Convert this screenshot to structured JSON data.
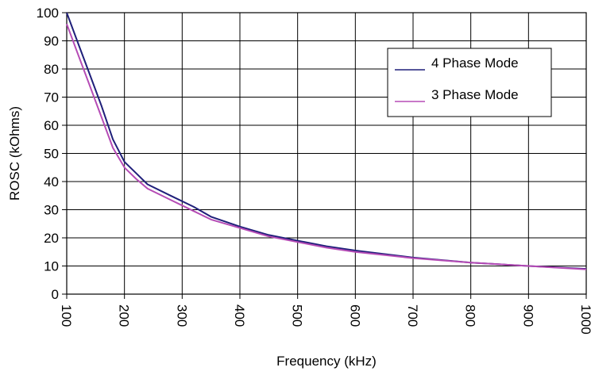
{
  "chart_data": {
    "type": "line",
    "title": "",
    "xlabel": "Frequency (kHz)",
    "ylabel": "ROSC (kOhms)",
    "xlim": [
      100,
      1000
    ],
    "ylim": [
      0,
      100
    ],
    "x_ticks": [
      100,
      200,
      300,
      400,
      500,
      600,
      700,
      800,
      900,
      1000
    ],
    "y_ticks": [
      0,
      10,
      20,
      30,
      40,
      50,
      60,
      70,
      80,
      90,
      100
    ],
    "grid": true,
    "legend_position": "top-right",
    "series": [
      {
        "name": "4 Phase Mode",
        "color": "#1f1f7a",
        "x": [
          100,
          120,
          140,
          160,
          180,
          200,
          220,
          240,
          280,
          320,
          350,
          400,
          450,
          500,
          550,
          600,
          700,
          800,
          900,
          1000
        ],
        "y": [
          100,
          89,
          78,
          67,
          55,
          47,
          43,
          39,
          35,
          31,
          27.5,
          24,
          21,
          19,
          17,
          15.5,
          13,
          11.2,
          10,
          9
        ]
      },
      {
        "name": "3 Phase Mode",
        "color": "#b54bb5",
        "x": [
          100,
          120,
          140,
          160,
          180,
          200,
          220,
          240,
          280,
          320,
          350,
          400,
          450,
          500,
          550,
          600,
          700,
          800,
          900,
          1000
        ],
        "y": [
          96,
          85,
          74,
          63,
          52,
          45,
          41,
          37.5,
          33.5,
          29.5,
          26.5,
          23.5,
          20.5,
          18.5,
          16.5,
          15,
          12.8,
          11.2,
          10,
          8.8
        ]
      }
    ]
  }
}
